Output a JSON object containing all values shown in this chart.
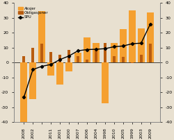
{
  "x_labels": [
    "2008",
    "2002",
    " ",
    "2011",
    "2001",
    "2000",
    "2007",
    "2006",
    "2004",
    "1998",
    "2010",
    "2005",
    "1999",
    "2003",
    "2009"
  ],
  "aksjer": [
    -40.7,
    -24.4,
    34.3,
    -8.8,
    -14.6,
    -5.8,
    6.8,
    17.0,
    13.0,
    -27.3,
    13.3,
    22.5,
    34.8,
    22.8,
    33.5
  ],
  "obligasjoner": [
    4.1,
    9.9,
    12.5,
    7.0,
    5.1,
    8.7,
    4.3,
    1.9,
    9.1,
    12.9,
    4.1,
    3.8,
    -0.4,
    5.3,
    12.5
  ],
  "spu": [
    -23.3,
    -4.7,
    -2.5,
    -1.3,
    2.0,
    4.4,
    7.9,
    8.7,
    8.9,
    9.3,
    10.6,
    11.1,
    12.6,
    13.0,
    25.6
  ],
  "aksjer_color": "#F5A030",
  "obligasjoner_color": "#B85C10",
  "spu_color": "#000000",
  "bg_color": "#E8E0D0",
  "ylim": [
    -40,
    40
  ],
  "yticks": [
    -40,
    -30,
    -20,
    -10,
    0,
    10,
    20,
    30,
    40
  ],
  "legend_labels": [
    "Aksjer",
    "Obligasjoner",
    "SPU"
  ],
  "bar_width": 0.75
}
